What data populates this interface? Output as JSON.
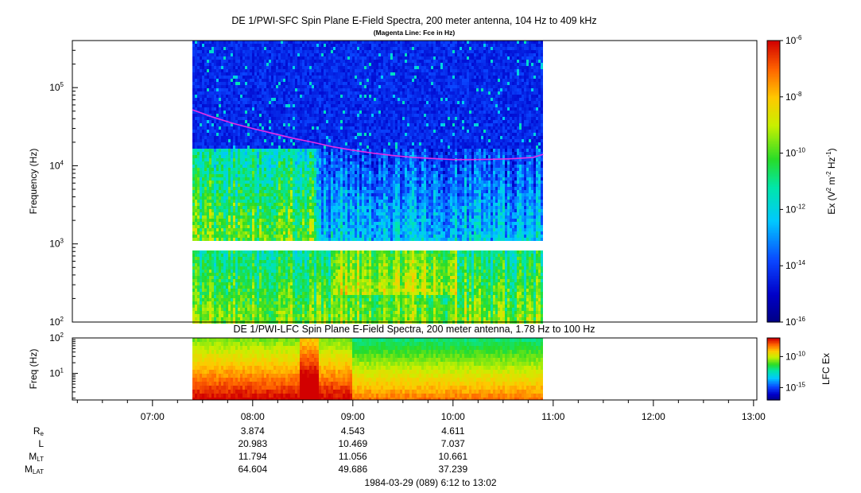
{
  "chart_data": [
    {
      "type": "heatmap",
      "title": "DE 1/PWI-SFC  Spin Plane E-Field Spectra, 200 meter antenna, 104 Hz to 409 kHz",
      "subtitle": "(Magenta Line: Fce in Hz)",
      "ylabel": "Frequency (Hz)",
      "yscale": "log",
      "ylim": [
        100,
        400000
      ],
      "yticks": [
        {
          "value": 100,
          "mantissa": "10",
          "exp": "2"
        },
        {
          "value": 1000,
          "mantissa": "10",
          "exp": "3"
        },
        {
          "value": 10000,
          "mantissa": "10",
          "exp": "4"
        },
        {
          "value": 100000,
          "mantissa": "10",
          "exp": "5"
        }
      ],
      "data_span_hours": [
        7.4,
        10.9
      ],
      "gap_hz": [
        900,
        1040
      ],
      "series": [
        {
          "name": "Fce",
          "color": "#e62ee6",
          "x_hours": [
            7.4,
            7.6,
            7.8,
            8.0,
            8.2,
            8.4,
            8.6,
            8.8,
            9.0,
            9.2,
            9.4,
            9.6,
            9.8,
            10.0,
            10.2,
            10.4,
            10.6,
            10.8,
            10.9
          ],
          "y_hz": [
            52000,
            42000,
            35000,
            30000,
            26000,
            22500,
            20000,
            17500,
            15800,
            14500,
            13500,
            12800,
            12400,
            12000,
            12000,
            12100,
            12300,
            12800,
            14000
          ]
        }
      ],
      "colorbar": {
        "label": "Ex (V² m⁻² Hz⁻¹)",
        "label_main": "Ex (V",
        "label_sup1": "2",
        "label_mid": " m",
        "label_sup2": "-2",
        "label_mid2": " Hz",
        "label_sup3": "-1",
        "label_end": ")",
        "log_range": [
          -16,
          -6
        ],
        "ticks": [
          {
            "value": -6,
            "mantissa": "10",
            "exp": "-6"
          },
          {
            "value": -8,
            "mantissa": "10",
            "exp": "-8"
          },
          {
            "value": -10,
            "mantissa": "10",
            "exp": "-10"
          },
          {
            "value": -12,
            "mantissa": "10",
            "exp": "-12"
          },
          {
            "value": -14,
            "mantissa": "10",
            "exp": "-14"
          },
          {
            "value": -16,
            "mantissa": "10",
            "exp": "-16"
          }
        ]
      }
    },
    {
      "type": "heatmap",
      "title": "DE 1/PWI-LFC  Spin Plane E-Field Spectra, 200 meter antenna, 1.78 Hz to 100 Hz",
      "ylabel": "Freq (Hz)",
      "yscale": "log",
      "ylim": [
        1.78,
        100
      ],
      "yticks": [
        {
          "value": 10,
          "mantissa": "10",
          "exp": "1"
        },
        {
          "value": 100,
          "mantissa": "10",
          "exp": "2"
        }
      ],
      "data_span_hours": [
        7.4,
        10.9
      ],
      "colorbar": {
        "label": "LFC Ex",
        "log_range": [
          -17,
          -7
        ],
        "ticks": [
          {
            "value": -10,
            "mantissa": "10",
            "exp": "-10"
          },
          {
            "value": -15,
            "mantissa": "10",
            "exp": "-15"
          }
        ]
      }
    }
  ],
  "time_axis": {
    "start_hours": 6.2,
    "end_hours": 13.033,
    "ticks": [
      {
        "value": 7,
        "label": "07:00"
      },
      {
        "value": 8,
        "label": "08:00"
      },
      {
        "value": 9,
        "label": "09:00"
      },
      {
        "value": 10,
        "label": "10:00"
      },
      {
        "value": 11,
        "label": "11:00"
      },
      {
        "value": 12,
        "label": "12:00"
      },
      {
        "value": 13,
        "label": "13:00"
      }
    ]
  },
  "ephemeris": {
    "times": [
      8,
      9,
      10
    ],
    "rows": [
      {
        "label": "R",
        "sub": "e",
        "values": [
          "3.874",
          "4.543",
          "4.611"
        ]
      },
      {
        "label": "L",
        "sub": "",
        "values": [
          "20.983",
          "10.469",
          "7.037"
        ]
      },
      {
        "label": "M",
        "sub": "LT",
        "values": [
          "11.794",
          "11.056",
          "10.661"
        ]
      },
      {
        "label": "M",
        "sub": "LAT",
        "values": [
          "64.604",
          "49.686",
          "37.239"
        ]
      }
    ]
  },
  "footer": "1984-03-29 (089) 6:12 to 13:02"
}
